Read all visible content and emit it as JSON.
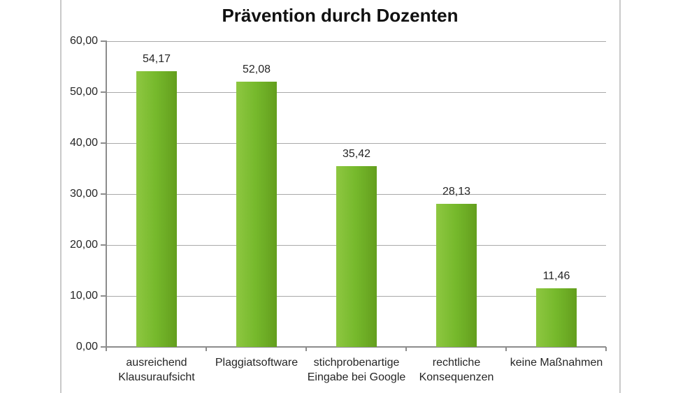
{
  "chart_data": {
    "type": "bar",
    "title": "Prävention durch Dozenten",
    "categories": [
      "ausreichend\nKlausuraufsicht",
      "Plaggiatsoftware",
      "stichprobenartige\nEingabe bei Google",
      "rechtliche\nKonsequenzen",
      "keine Maßnahmen"
    ],
    "values": [
      54.17,
      52.08,
      35.42,
      28.13,
      11.46
    ],
    "value_labels": [
      "54,17",
      "52,08",
      "35,42",
      "28,13",
      "11,46"
    ],
    "xlabel": "",
    "ylabel": "",
    "y_axis": {
      "min": 0,
      "max": 60,
      "tick_step": 10,
      "tick_labels": [
        "0,00",
        "10,00",
        "20,00",
        "30,00",
        "40,00",
        "50,00",
        "60,00"
      ]
    },
    "grid": true,
    "legend_position": "none",
    "colors": {
      "bar_light": "#8ec741",
      "bar_mid": "#76b92c",
      "bar_dark": "#639e1d",
      "gridline": "#a9a9a9",
      "axis": "#8c8c8c",
      "frame": "#c9c9c9",
      "text": "#262626",
      "title": "#111111",
      "background": "#ffffff"
    }
  }
}
